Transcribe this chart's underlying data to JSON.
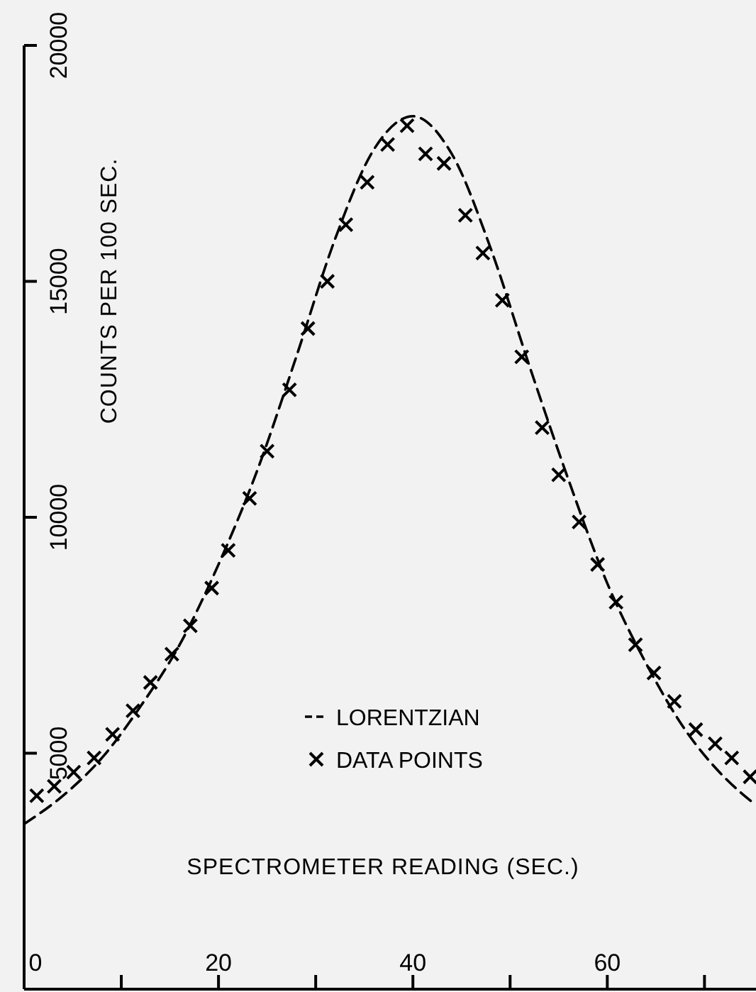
{
  "chart_data": {
    "type": "scatter",
    "xlabel": "SPECTROMETER READING (SEC.)",
    "ylabel": "COUNTS PER 100 SEC.",
    "xlim": [
      0,
      75.3
    ],
    "ylim": [
      0,
      20000
    ],
    "xticks": [
      0,
      {
        "value": 10,
        "label": null
      },
      20,
      {
        "value": 30,
        "label": null
      },
      40,
      {
        "value": 50,
        "label": null
      },
      60,
      {
        "value": 70,
        "label": null
      }
    ],
    "yticks": [
      5000,
      10000,
      15000,
      20000
    ],
    "grid": false,
    "legend": "bottom",
    "series": [
      {
        "name": "LORENTZIAN",
        "type": "line",
        "color": "#000000",
        "marker": "none",
        "line_style": "dashed",
        "x": [
          0,
          4,
          8,
          12,
          16,
          20,
          24,
          28,
          32,
          36,
          40,
          44,
          48,
          52,
          56,
          60,
          64,
          68,
          72,
          75.3
        ],
        "values": [
          3500,
          4100,
          4900,
          6000,
          7300,
          9000,
          11000,
          13400,
          15900,
          17800,
          18500,
          17700,
          15700,
          13200,
          10800,
          8600,
          6900,
          5500,
          4500,
          3900
        ]
      },
      {
        "name": "DATA POINTS",
        "color": "#000000",
        "marker": "cross",
        "x": [
          1.3,
          3.1,
          5.1,
          7.2,
          9.1,
          11.2,
          13.0,
          15.2,
          17.1,
          19.3,
          21.0,
          23.2,
          25.0,
          27.3,
          29.2,
          31.2,
          33.1,
          35.3,
          37.4,
          39.4,
          41.3,
          43.2,
          45.4,
          47.2,
          49.2,
          51.2,
          53.3,
          55.0,
          57.1,
          59.0,
          60.9,
          62.9,
          64.8,
          66.9,
          69.1,
          71.1,
          72.8,
          74.7
        ],
        "values": [
          4100,
          4300,
          4600,
          4900,
          5400,
          5900,
          6500,
          7100,
          7700,
          8500,
          9300,
          10400,
          11400,
          12700,
          14000,
          15000,
          16200,
          17100,
          17900,
          18300,
          17700,
          17500,
          16400,
          15600,
          14600,
          13400,
          11900,
          10900,
          9900,
          9000,
          8200,
          7300,
          6700,
          6100,
          5500,
          5200,
          4900,
          4500
        ]
      }
    ]
  }
}
